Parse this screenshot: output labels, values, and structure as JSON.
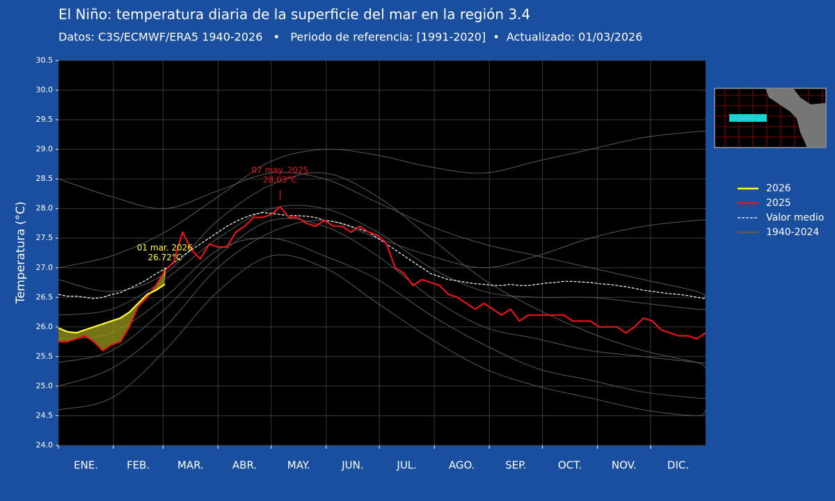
{
  "chart_data": {
    "type": "line",
    "title": "El Niño: temperatura diaria de la superficie del mar en la región 3.4",
    "subtitle": "Datos: C3S/ECMWF/ERA5 1940-2026   •   Periodo de referencia: [1991-2020]  •  Actualizado: 01/03/2026",
    "y_label": "Temperatura (°C)",
    "xlim": [
      0,
      365
    ],
    "xticks": [
      {
        "value": 0,
        "label": "ENE."
      },
      {
        "value": 31,
        "label": "FEB."
      },
      {
        "value": 59,
        "label": "MAR."
      },
      {
        "value": 90,
        "label": "ABR."
      },
      {
        "value": 120,
        "label": "MAY."
      },
      {
        "value": 151,
        "label": "JUN."
      },
      {
        "value": 181,
        "label": "JUL."
      },
      {
        "value": 212,
        "label": "AGO."
      },
      {
        "value": 243,
        "label": "SEP."
      },
      {
        "value": 273,
        "label": "OCT."
      },
      {
        "value": 304,
        "label": "NOV."
      },
      {
        "value": 334,
        "label": "DIC."
      }
    ],
    "ylim": [
      24,
      30.5
    ],
    "yticks": [
      {
        "value": 24,
        "label": "24.0"
      },
      24.5,
      {
        "value": 25,
        "label": "25.0"
      },
      25.5,
      {
        "value": 26,
        "label": "26.0"
      },
      26.5,
      {
        "value": 27,
        "label": "27.0"
      },
      27.5,
      {
        "value": 28,
        "label": "28.0"
      },
      28.5,
      {
        "value": 29,
        "label": "29.0"
      },
      29.5,
      {
        "value": 30,
        "label": "30.0"
      },
      30.5
    ],
    "grid": true,
    "legend": "right",
    "x": [
      0,
      5,
      10,
      15,
      20,
      25,
      30,
      35,
      40,
      45,
      50,
      55,
      60,
      65,
      70,
      75,
      80,
      85,
      90,
      95,
      100,
      105,
      110,
      115,
      120,
      125,
      130,
      135,
      140,
      145,
      150,
      155,
      160,
      165,
      170,
      175,
      180,
      185,
      190,
      195,
      200,
      205,
      210,
      215,
      220,
      225,
      230,
      235,
      240,
      245,
      250,
      255,
      260,
      265,
      270,
      275,
      280,
      285,
      290,
      295,
      300,
      305,
      310,
      315,
      320,
      325,
      330,
      335,
      340,
      345,
      350,
      355,
      360,
      365
    ],
    "series": [
      {
        "name": "2026",
        "color": "#ffff33",
        "x": [
          0,
          5,
          10,
          15,
          20,
          25,
          30,
          35,
          40,
          45,
          50,
          55,
          60
        ],
        "values": [
          25.98,
          25.92,
          25.9,
          25.95,
          26.0,
          26.05,
          26.1,
          26.15,
          26.25,
          26.4,
          26.55,
          26.62,
          26.72
        ]
      },
      {
        "name": "2025",
        "color": "#e8141c",
        "values": [
          25.75,
          25.75,
          25.8,
          25.85,
          25.75,
          25.6,
          25.7,
          25.75,
          26.0,
          26.35,
          26.5,
          26.7,
          26.95,
          27.1,
          27.6,
          27.3,
          27.15,
          27.4,
          27.35,
          27.35,
          27.6,
          27.7,
          27.85,
          27.85,
          27.9,
          28.03,
          27.85,
          27.85,
          27.75,
          27.7,
          27.8,
          27.7,
          27.7,
          27.6,
          27.7,
          27.6,
          27.55,
          27.4,
          27.0,
          26.9,
          26.7,
          26.8,
          26.75,
          26.7,
          26.55,
          26.5,
          26.4,
          26.3,
          26.4,
          26.3,
          26.2,
          26.3,
          26.1,
          26.2,
          26.2,
          26.2,
          26.2,
          26.2,
          26.1,
          26.1,
          26.1,
          26.0,
          26.0,
          26.0,
          25.9,
          26.0,
          26.15,
          26.1,
          25.95,
          25.9,
          25.85,
          25.85,
          25.8,
          25.9
        ]
      },
      {
        "name": "Valor medio",
        "color": "#ffffff",
        "dashed": true,
        "values": [
          26.55,
          26.52,
          26.52,
          26.5,
          26.48,
          26.5,
          26.55,
          26.58,
          26.65,
          26.72,
          26.8,
          26.9,
          26.98,
          27.08,
          27.2,
          27.3,
          27.4,
          27.5,
          27.6,
          27.7,
          27.78,
          27.85,
          27.9,
          27.93,
          27.92,
          27.9,
          27.88,
          27.88,
          27.87,
          27.85,
          27.8,
          27.78,
          27.75,
          27.7,
          27.65,
          27.6,
          27.5,
          27.4,
          27.3,
          27.2,
          27.1,
          27.0,
          26.9,
          26.85,
          26.8,
          26.78,
          26.75,
          26.73,
          26.72,
          26.7,
          26.7,
          26.72,
          26.7,
          26.7,
          26.72,
          26.74,
          26.75,
          26.77,
          26.77,
          26.76,
          26.75,
          26.73,
          26.72,
          26.7,
          26.68,
          26.65,
          26.62,
          26.6,
          26.58,
          26.56,
          26.55,
          26.53,
          26.5,
          26.48
        ]
      },
      {
        "name": "1940-2024",
        "color": "#5a5a5a",
        "group": true,
        "x": [
          0,
          30,
          60,
          90,
          120,
          150,
          180,
          210,
          240,
          270,
          300,
          330,
          360,
          365
        ],
        "values": [
          [
            27.0,
            27.2,
            27.6,
            28.2,
            28.8,
            29.0,
            28.9,
            28.7,
            28.6,
            28.8,
            29.0,
            29.2,
            29.3,
            29.3
          ],
          [
            24.6,
            24.8,
            25.6,
            26.6,
            27.2,
            27.0,
            26.4,
            25.8,
            25.3,
            25.0,
            24.8,
            24.6,
            24.5,
            24.6
          ],
          [
            26.2,
            26.3,
            26.8,
            27.5,
            28.0,
            28.0,
            27.6,
            27.0,
            26.6,
            26.5,
            26.5,
            26.4,
            26.3,
            26.3
          ],
          [
            25.4,
            25.6,
            26.3,
            27.2,
            27.8,
            27.7,
            27.2,
            26.5,
            26.0,
            25.8,
            25.6,
            25.5,
            25.4,
            25.4
          ],
          [
            28.5,
            28.2,
            28.0,
            28.3,
            28.6,
            28.5,
            28.1,
            27.7,
            27.4,
            27.2,
            27.0,
            26.8,
            26.6,
            26.5
          ],
          [
            25.0,
            25.3,
            26.0,
            27.0,
            27.6,
            27.8,
            27.5,
            27.2,
            27.0,
            27.2,
            27.5,
            27.7,
            27.8,
            27.8
          ],
          [
            26.8,
            26.6,
            26.9,
            27.8,
            28.4,
            28.6,
            28.2,
            27.5,
            26.8,
            26.3,
            25.9,
            25.6,
            25.4,
            25.3
          ],
          [
            25.8,
            25.9,
            26.5,
            27.3,
            27.5,
            27.2,
            26.8,
            26.2,
            25.7,
            25.3,
            25.1,
            24.9,
            24.8,
            24.8
          ]
        ]
      }
    ],
    "annotations": [
      {
        "label": "01 mar. 2026",
        "value_label": "26.72°C",
        "x": 60,
        "y": 26.72,
        "color": "#ffff33"
      },
      {
        "label": "07 may. 2025",
        "value_label": "28.03°C",
        "x": 125,
        "y": 28.03,
        "color": "#e8141c"
      }
    ]
  }
}
